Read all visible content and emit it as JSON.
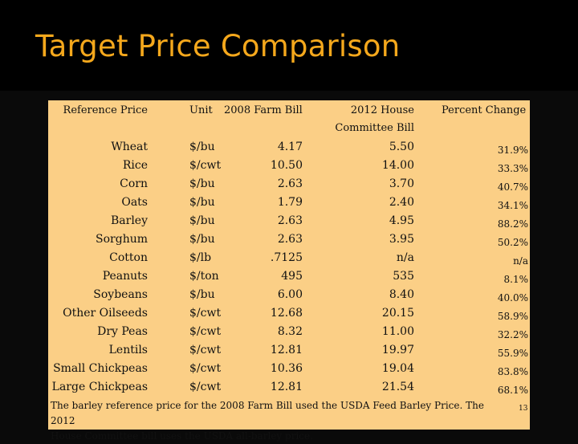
{
  "slide": {
    "title": "Target Price Comparison",
    "page_number": "13"
  },
  "table": {
    "headers": {
      "reference_price": "Reference Price",
      "unit": "Unit",
      "farm_bill_2008": "2008 Farm Bill",
      "house_bill_2012_line1": "2012 House",
      "house_bill_2012_line2": "Committee Bill",
      "percent_change": "Percent Change"
    },
    "rows": [
      {
        "crop": "Wheat",
        "unit": "$/bu",
        "farm_2008": "4.17",
        "house_2012": "5.50",
        "pct": "31.9%"
      },
      {
        "crop": "Rice",
        "unit": "$/cwt",
        "farm_2008": "10.50",
        "house_2012": "14.00",
        "pct": "33.3%"
      },
      {
        "crop": "Corn",
        "unit": "$/bu",
        "farm_2008": "2.63",
        "house_2012": "3.70",
        "pct": "40.7%"
      },
      {
        "crop": "Oats",
        "unit": "$/bu",
        "farm_2008": "1.79",
        "house_2012": "2.40",
        "pct": "34.1%"
      },
      {
        "crop": "Barley",
        "unit": "$/bu",
        "farm_2008": "2.63",
        "house_2012": "4.95",
        "pct": "88.2%"
      },
      {
        "crop": "Sorghum",
        "unit": "$/bu",
        "farm_2008": "2.63",
        "house_2012": "3.95",
        "pct": "50.2%"
      },
      {
        "crop": "Cotton",
        "unit": "$/lb",
        "farm_2008": ".7125",
        "house_2012": "n/a",
        "pct": "n/a"
      },
      {
        "crop": "Peanuts",
        "unit": "$/ton",
        "farm_2008": "495",
        "house_2012": "535",
        "pct": "8.1%"
      },
      {
        "crop": "Soybeans",
        "unit": "$/bu",
        "farm_2008": "6.00",
        "house_2012": "8.40",
        "pct": "40.0%"
      },
      {
        "crop": "Other Oilseeds",
        "unit": "$/cwt",
        "farm_2008": "12.68",
        "house_2012": "20.15",
        "pct": "58.9%"
      },
      {
        "crop": "Dry Peas",
        "unit": "$/cwt",
        "farm_2008": "8.32",
        "house_2012": "11.00",
        "pct": "32.2%"
      },
      {
        "crop": "Lentils",
        "unit": "$/cwt",
        "farm_2008": "12.81",
        "house_2012": "19.97",
        "pct": "55.9%"
      },
      {
        "crop": "Small Chickpeas",
        "unit": "$/cwt",
        "farm_2008": "10.36",
        "house_2012": "19.04",
        "pct": "83.8%"
      },
      {
        "crop": "Large Chickpeas",
        "unit": "$/cwt",
        "farm_2008": "12.81",
        "house_2012": "21.54",
        "pct": "68.1%"
      }
    ]
  },
  "footnote": {
    "line1": "The barley reference price for the 2008 Farm Bill used the USDA Feed Barley Price. The 2012",
    "line2": "House Committee bill uses the USDA all-barley price."
  }
}
